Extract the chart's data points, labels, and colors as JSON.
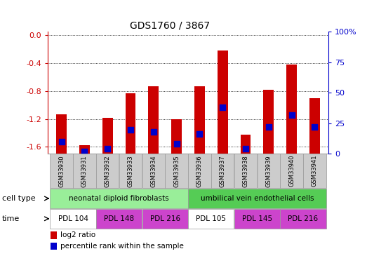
{
  "title": "GDS1760 / 3867",
  "samples": [
    "GSM33930",
    "GSM33931",
    "GSM33932",
    "GSM33933",
    "GSM33934",
    "GSM33935",
    "GSM33936",
    "GSM33937",
    "GSM33938",
    "GSM33939",
    "GSM33940",
    "GSM33941"
  ],
  "log2_ratio": [
    -1.13,
    -1.58,
    -1.18,
    -0.83,
    -0.73,
    -1.2,
    -0.73,
    -0.22,
    -1.43,
    -0.78,
    -0.42,
    -0.9
  ],
  "percentile_rank": [
    10,
    2,
    4,
    20,
    18,
    8,
    16,
    38,
    4,
    22,
    32,
    22
  ],
  "ylim_left": [
    -1.7,
    0.05
  ],
  "ylim_right": [
    -1.0625,
    100
  ],
  "left_ticks": [
    0.0,
    -0.4,
    -0.8,
    -1.2,
    -1.6
  ],
  "right_ticks": [
    0,
    25,
    50,
    75,
    100
  ],
  "bar_color": "#cc0000",
  "dot_color": "#0000cc",
  "cell_type_groups": [
    {
      "label": "neonatal diploid fibroblasts",
      "start": 0,
      "end": 5,
      "color": "#99ee99"
    },
    {
      "label": "umbilical vein endothelial cells",
      "start": 6,
      "end": 11,
      "color": "#55cc55"
    }
  ],
  "time_groups": [
    {
      "label": "PDL 104",
      "start": 0,
      "end": 1,
      "color": "#ffffff"
    },
    {
      "label": "PDL 148",
      "start": 2,
      "end": 3,
      "color": "#cc44cc"
    },
    {
      "label": "PDL 216",
      "start": 4,
      "end": 5,
      "color": "#cc44cc"
    },
    {
      "label": "PDL 105",
      "start": 6,
      "end": 7,
      "color": "#ffffff"
    },
    {
      "label": "PDL 145",
      "start": 8,
      "end": 9,
      "color": "#cc44cc"
    },
    {
      "label": "PDL 216",
      "start": 10,
      "end": 11,
      "color": "#cc44cc"
    }
  ],
  "left_axis_color": "#cc0000",
  "right_axis_color": "#0000cc",
  "bar_width": 0.45,
  "dot_size": 28
}
